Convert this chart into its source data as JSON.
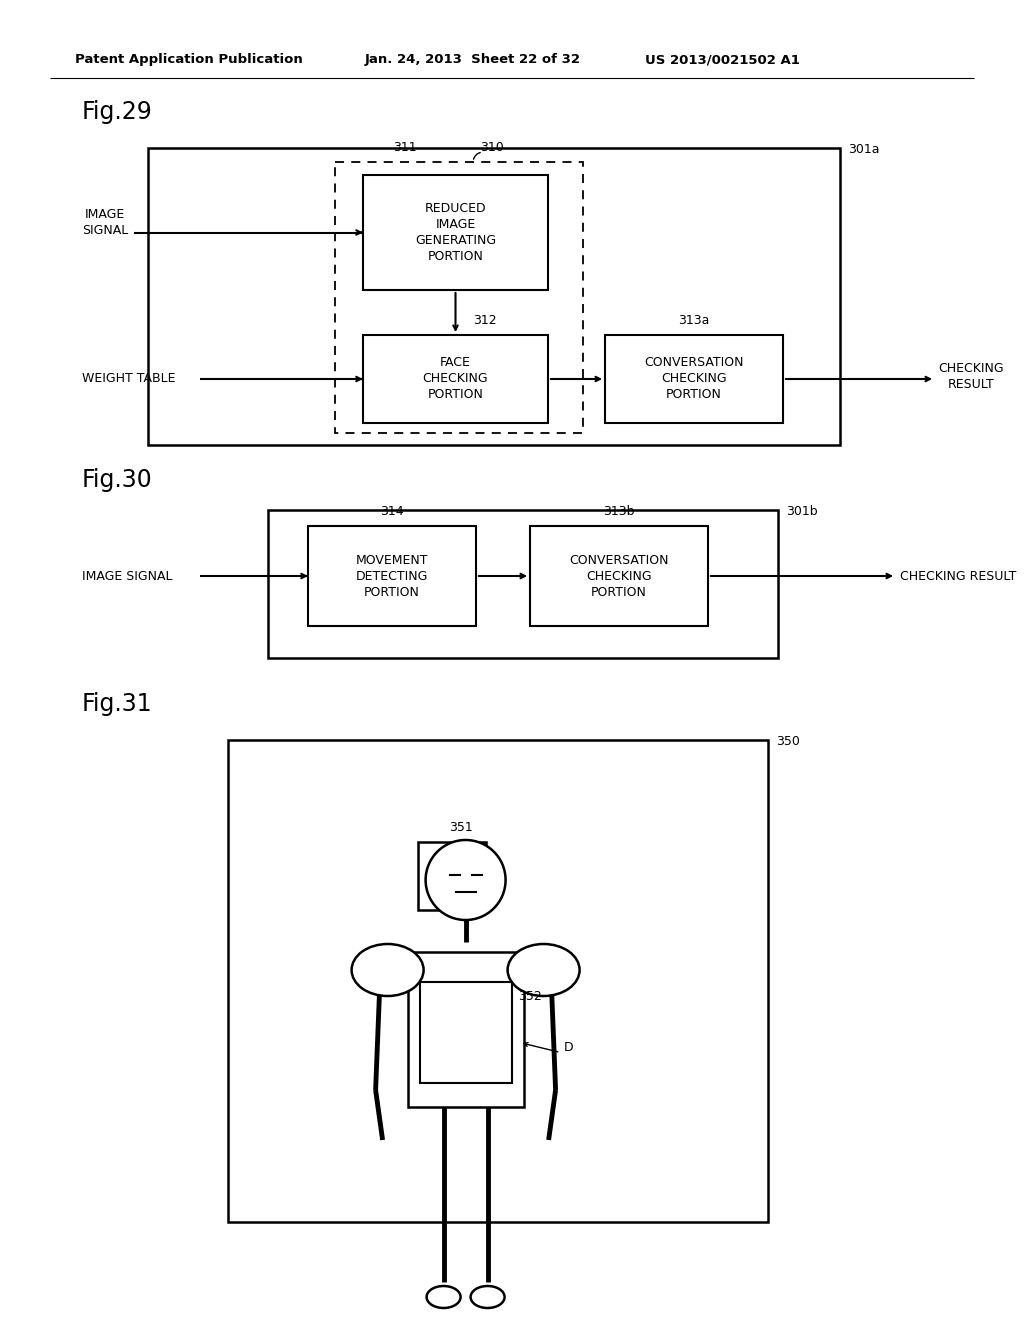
{
  "bg_color": "#ffffff",
  "header_left": "Patent Application Publication",
  "header_mid": "Jan. 24, 2013  Sheet 22 of 32",
  "header_right": "US 2013/0021502 A1",
  "fig29_title": "Fig.29",
  "fig30_title": "Fig.30",
  "fig31_title": "Fig.31",
  "label_301a": "301a",
  "label_301b": "301b",
  "label_310": "310",
  "label_311": "311",
  "label_312": "312",
  "label_313a": "313a",
  "label_313b": "313b",
  "label_314": "314",
  "label_350": "350",
  "label_351": "351",
  "label_352": "352",
  "label_D": "D",
  "txt_reduced": "REDUCED\nIMAGE\nGENERATING\nPORTION",
  "txt_face": "FACE\nCHECKING\nPORTION",
  "txt_conv1": "CONVERSATION\nCHECKING\nPORTION",
  "txt_movement": "MOVEMENT\nDETECTING\nPORTION",
  "txt_conv2": "CONVERSATION\nCHECKING\nPORTION",
  "txt_image_signal": "IMAGE\nSIGNAL",
  "txt_image_signal2": "IMAGE SIGNAL",
  "txt_weight_table": "WEIGHT TABLE",
  "txt_checking_result": "CHECKING\nRESULT",
  "txt_checking_result2": "CHECKING RESULT"
}
